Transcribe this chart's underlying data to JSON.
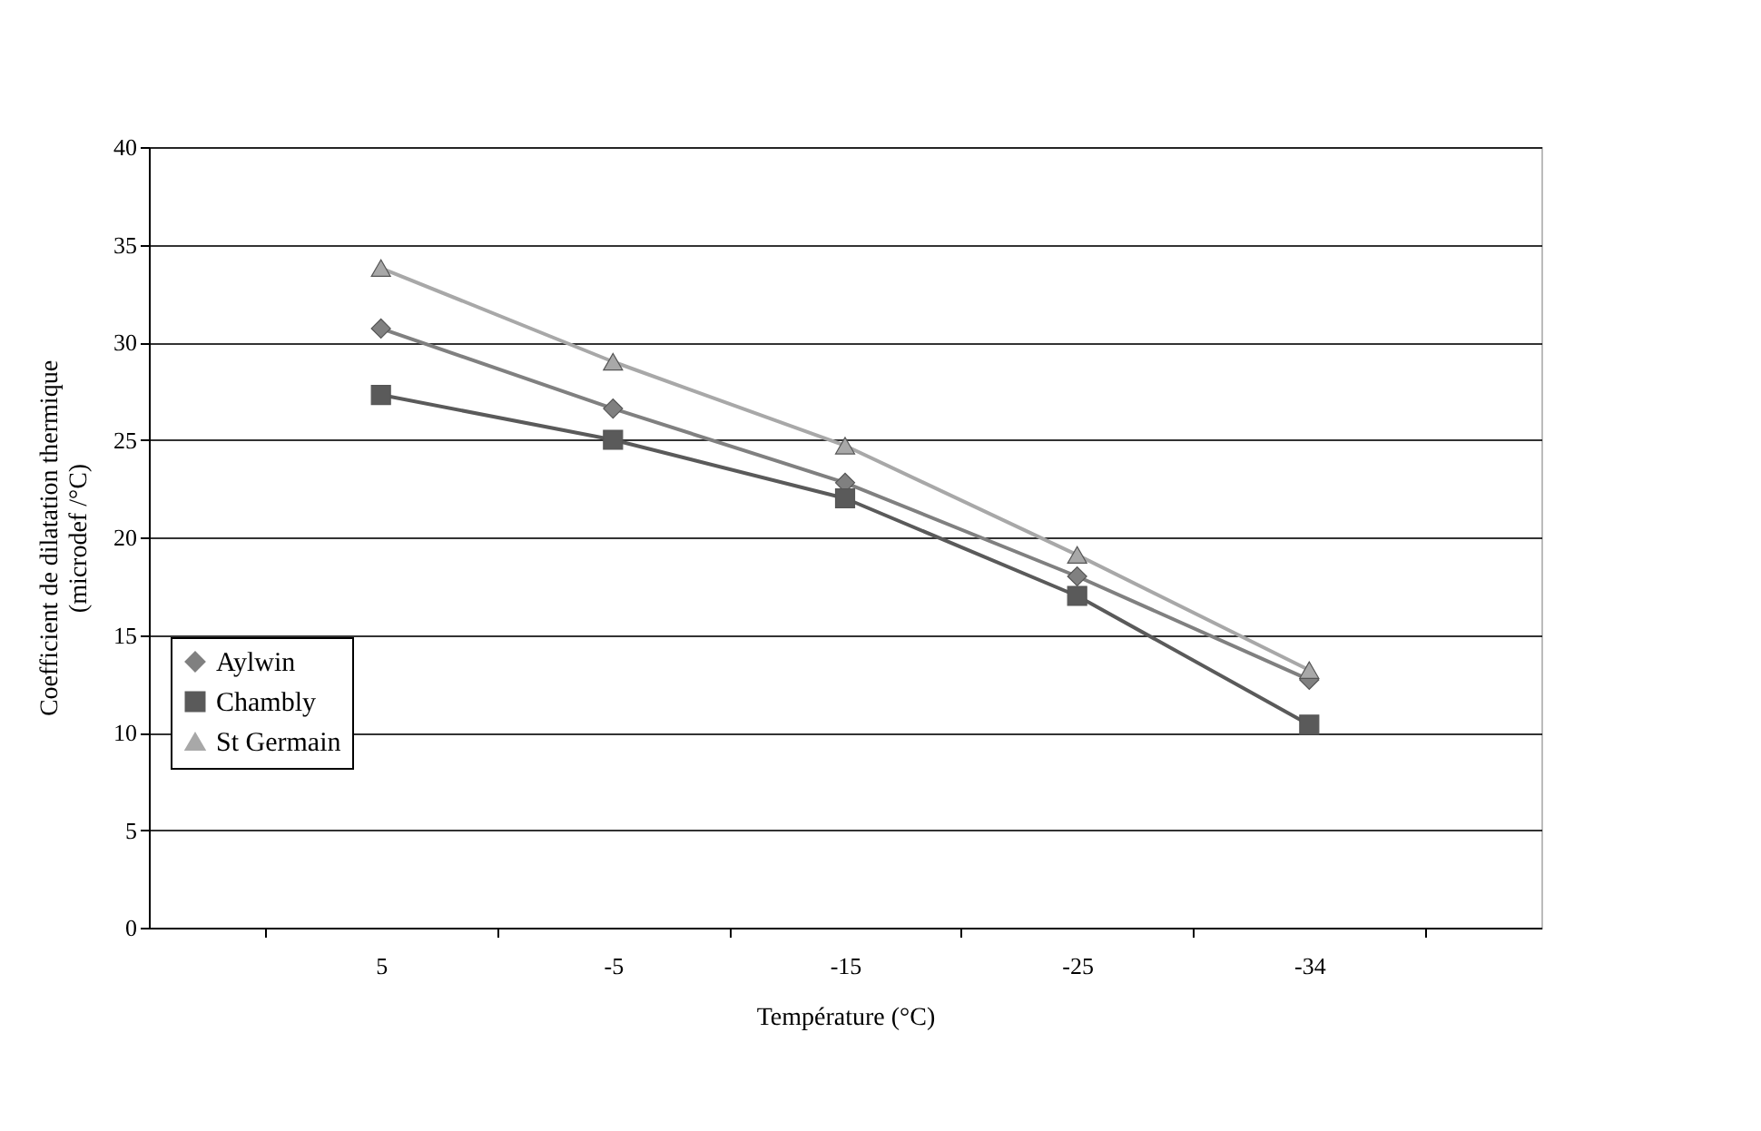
{
  "chart_data": {
    "type": "line",
    "xlabel": "Température (°C)",
    "ylabel": "Coefficient de dilatation thermique (microdef /°C)",
    "categories": [
      "5",
      "-5",
      "-15",
      "-25",
      "-34"
    ],
    "series": [
      {
        "name": "Aylwin",
        "color": "#808080",
        "marker": "diamond",
        "values": [
          30.7,
          26.6,
          22.8,
          18.0,
          12.7
        ]
      },
      {
        "name": "Chambly",
        "color": "#5a5a5a",
        "marker": "square",
        "values": [
          27.3,
          25.0,
          22.0,
          17.0,
          10.4
        ]
      },
      {
        "name": "St Germain",
        "color": "#a8a8a8",
        "marker": "triangle",
        "values": [
          33.8,
          29.0,
          24.7,
          19.1,
          13.2
        ]
      }
    ],
    "ylim": [
      0,
      40
    ],
    "yticks": [
      0,
      5,
      10,
      15,
      20,
      25,
      30,
      35,
      40
    ],
    "grid": "y",
    "legend": "bottom left",
    "line_style": "solid"
  }
}
